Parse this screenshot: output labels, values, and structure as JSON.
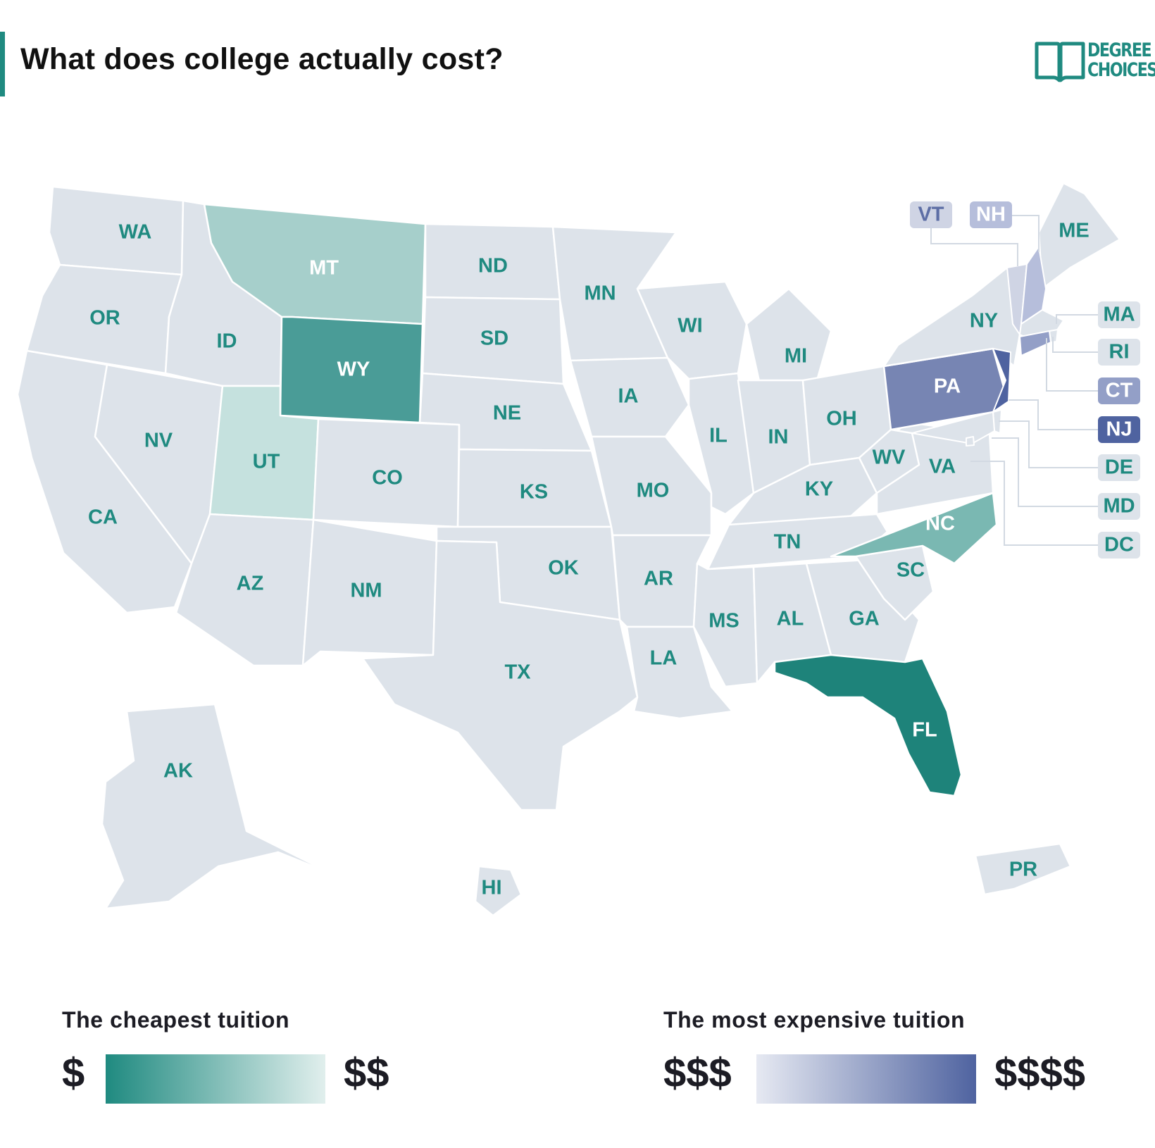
{
  "header": {
    "title": "What does college actually cost?"
  },
  "logo": {
    "line1": "DEGREE",
    "line2": "CHOICES"
  },
  "colors": {
    "accent": "#1f8a80",
    "default_state": "#dde3ea",
    "label_default": "#1f8a80",
    "label_on_dark": "#ffffff",
    "cheap_dark": "#1f8a80",
    "cheap_light": "#e1efed",
    "expensive_light": "#e6e9f2",
    "expensive_dark": "#4f63a0"
  },
  "states": [
    {
      "code": "WA",
      "fill": "#dde3ea",
      "label": "#1f8a80"
    },
    {
      "code": "OR",
      "fill": "#dde3ea",
      "label": "#1f8a80"
    },
    {
      "code": "CA",
      "fill": "#dde3ea",
      "label": "#1f8a80"
    },
    {
      "code": "NV",
      "fill": "#dde3ea",
      "label": "#1f8a80"
    },
    {
      "code": "ID",
      "fill": "#dde3ea",
      "label": "#1f8a80"
    },
    {
      "code": "MT",
      "fill": "#a6cfcb",
      "label": "#ffffff"
    },
    {
      "code": "WY",
      "fill": "#4a9c97",
      "label": "#ffffff"
    },
    {
      "code": "UT",
      "fill": "#c5e1de",
      "label": "#1f8a80"
    },
    {
      "code": "AZ",
      "fill": "#dde3ea",
      "label": "#1f8a80"
    },
    {
      "code": "NM",
      "fill": "#dde3ea",
      "label": "#1f8a80"
    },
    {
      "code": "CO",
      "fill": "#dde3ea",
      "label": "#1f8a80"
    },
    {
      "code": "ND",
      "fill": "#dde3ea",
      "label": "#1f8a80"
    },
    {
      "code": "SD",
      "fill": "#dde3ea",
      "label": "#1f8a80"
    },
    {
      "code": "NE",
      "fill": "#dde3ea",
      "label": "#1f8a80"
    },
    {
      "code": "KS",
      "fill": "#dde3ea",
      "label": "#1f8a80"
    },
    {
      "code": "OK",
      "fill": "#dde3ea",
      "label": "#1f8a80"
    },
    {
      "code": "TX",
      "fill": "#dde3ea",
      "label": "#1f8a80"
    },
    {
      "code": "MN",
      "fill": "#dde3ea",
      "label": "#1f8a80"
    },
    {
      "code": "IA",
      "fill": "#dde3ea",
      "label": "#1f8a80"
    },
    {
      "code": "MO",
      "fill": "#dde3ea",
      "label": "#1f8a80"
    },
    {
      "code": "AR",
      "fill": "#dde3ea",
      "label": "#1f8a80"
    },
    {
      "code": "LA",
      "fill": "#dde3ea",
      "label": "#1f8a80"
    },
    {
      "code": "WI",
      "fill": "#dde3ea",
      "label": "#1f8a80"
    },
    {
      "code": "IL",
      "fill": "#dde3ea",
      "label": "#1f8a80"
    },
    {
      "code": "MI",
      "fill": "#dde3ea",
      "label": "#1f8a80"
    },
    {
      "code": "IN",
      "fill": "#dde3ea",
      "label": "#1f8a80"
    },
    {
      "code": "OH",
      "fill": "#dde3ea",
      "label": "#1f8a80"
    },
    {
      "code": "KY",
      "fill": "#dde3ea",
      "label": "#1f8a80"
    },
    {
      "code": "TN",
      "fill": "#dde3ea",
      "label": "#1f8a80"
    },
    {
      "code": "MS",
      "fill": "#dde3ea",
      "label": "#1f8a80"
    },
    {
      "code": "AL",
      "fill": "#dde3ea",
      "label": "#1f8a80"
    },
    {
      "code": "GA",
      "fill": "#dde3ea",
      "label": "#1f8a80"
    },
    {
      "code": "FL",
      "fill": "#1e837a",
      "label": "#ffffff"
    },
    {
      "code": "SC",
      "fill": "#dde3ea",
      "label": "#1f8a80"
    },
    {
      "code": "NC",
      "fill": "#7ab8b2",
      "label": "#ffffff"
    },
    {
      "code": "VA",
      "fill": "#dde3ea",
      "label": "#1f8a80"
    },
    {
      "code": "WV",
      "fill": "#dde3ea",
      "label": "#1f8a80"
    },
    {
      "code": "PA",
      "fill": "#7785b3",
      "label": "#ffffff"
    },
    {
      "code": "NY",
      "fill": "#dde3ea",
      "label": "#1f8a80"
    },
    {
      "code": "ME",
      "fill": "#dde3ea",
      "label": "#1f8a80"
    },
    {
      "code": "AK",
      "fill": "#dde3ea",
      "label": "#1f8a80"
    },
    {
      "code": "HI",
      "fill": "#dde3ea",
      "label": "#1f8a80"
    },
    {
      "code": "PR",
      "fill": "#dde3ea",
      "label": "#1f8a80"
    }
  ],
  "small_states": [
    {
      "code": "VT",
      "fill": "#cfd4e4",
      "badge": "#cfd4e4",
      "text": "#5d6ea5"
    },
    {
      "code": "NH",
      "fill": "#b6bedb",
      "badge": "#b6bedb",
      "text": "#ffffff"
    },
    {
      "code": "MA",
      "fill": "#dde3ea",
      "badge": "#dde3ea",
      "text": "#1f8a80"
    },
    {
      "code": "RI",
      "fill": "#dde3ea",
      "badge": "#dde3ea",
      "text": "#1f8a80"
    },
    {
      "code": "CT",
      "fill": "#939fc7",
      "badge": "#939fc7",
      "text": "#ffffff"
    },
    {
      "code": "NJ",
      "fill": "#4f63a0",
      "badge": "#4f63a0",
      "text": "#ffffff"
    },
    {
      "code": "DE",
      "fill": "#dde3ea",
      "badge": "#dde3ea",
      "text": "#1f8a80"
    },
    {
      "code": "MD",
      "fill": "#dde3ea",
      "badge": "#dde3ea",
      "text": "#1f8a80"
    },
    {
      "code": "DC",
      "fill": "#dde3ea",
      "badge": "#dde3ea",
      "text": "#1f8a80"
    }
  ],
  "legend": {
    "cheap": {
      "title": "The cheapest tuition",
      "low": "$",
      "high": "$$"
    },
    "expensive": {
      "title": "The most expensive tuition",
      "low": "$$$",
      "high": "$$$$"
    }
  }
}
